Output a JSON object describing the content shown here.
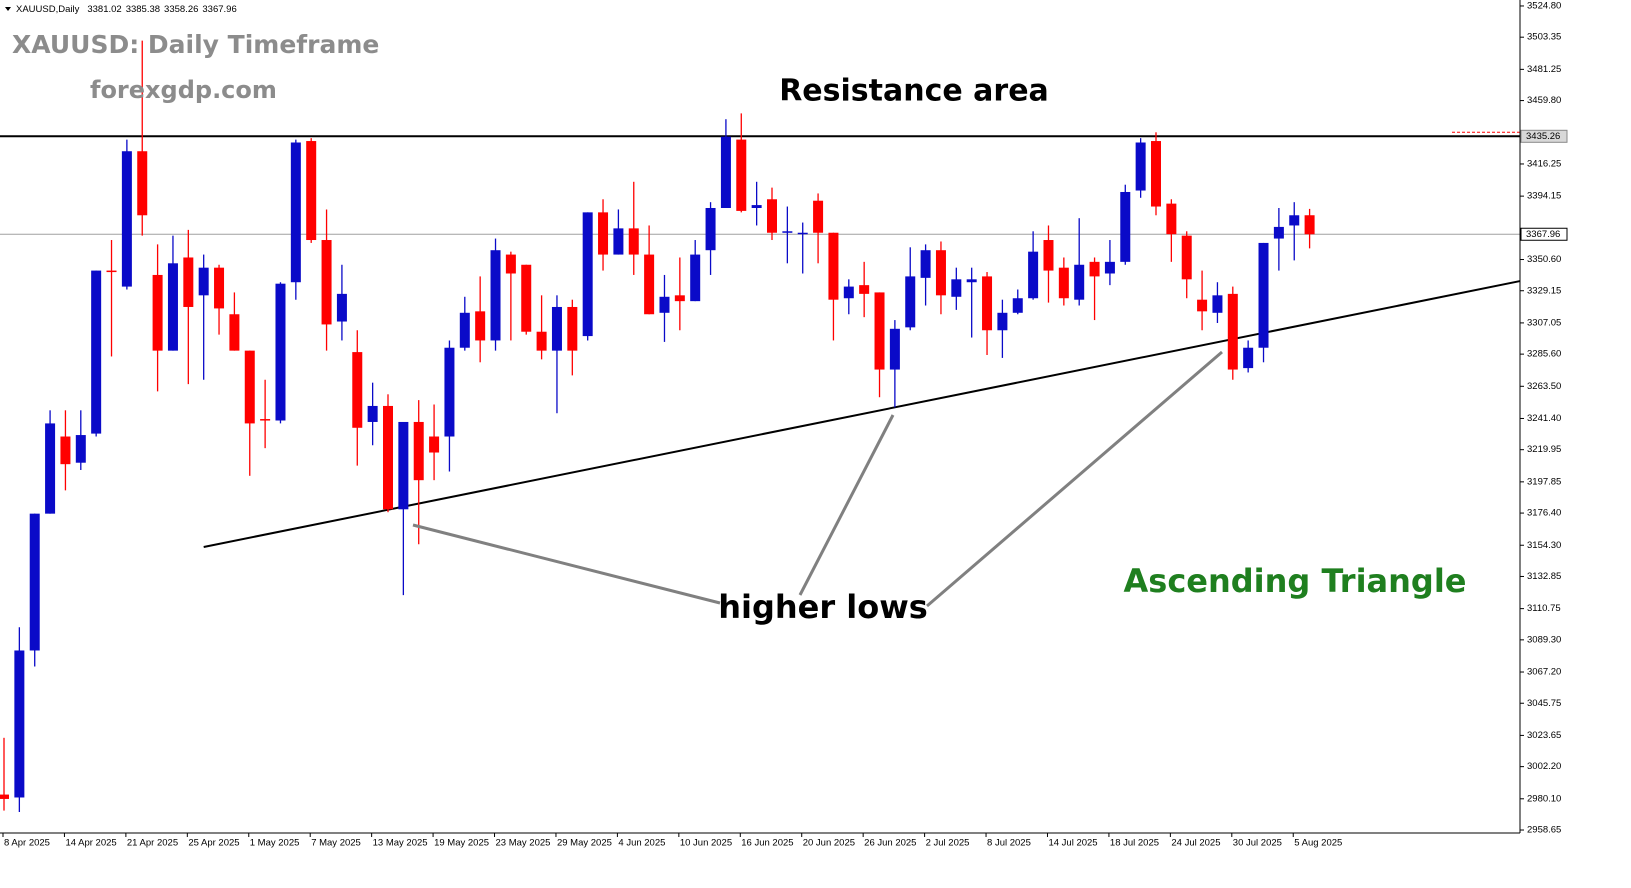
{
  "chart_data": {
    "type": "candlestick",
    "symbol": "XAUUSD,Daily",
    "title": "XAUUSD: Daily Timeframe",
    "subtitle": "forexgdp.com",
    "annotations": {
      "resistance": "Resistance area",
      "lows": "higher lows",
      "pattern": "Ascending Triangle"
    },
    "up_color": "#0a0ac8",
    "down_color": "#ff0000",
    "categories": [
      "8 Apr 2025",
      null,
      null,
      null,
      "14 Apr 2025",
      null,
      null,
      null,
      "21 Apr 2025",
      null,
      null,
      null,
      "25 Apr 2025",
      null,
      null,
      null,
      "1 May 2025",
      null,
      null,
      null,
      "7 May 2025",
      null,
      null,
      null,
      "13 May 2025",
      null,
      null,
      null,
      "19 May 2025",
      null,
      null,
      null,
      "23 May 2025",
      null,
      null,
      null,
      "29 May 2025",
      null,
      null,
      null,
      "4 Jun 2025",
      null,
      null,
      null,
      "10 Jun 2025",
      null,
      null,
      null,
      "16 Jun 2025",
      null,
      null,
      null,
      "20 Jun 2025",
      null,
      null,
      null,
      "26 Jun 2025",
      null,
      null,
      null,
      "2 Jul 2025",
      null,
      null,
      null,
      "8 Jul 2025",
      null,
      null,
      null,
      "14 Jul 2025",
      null,
      null,
      null,
      "18 Jul 2025",
      null,
      null,
      null,
      "24 Jul 2025",
      null,
      null,
      null,
      "30 Jul 2025",
      null,
      null,
      null,
      "5 Aug 2025",
      null
    ],
    "open": [
      2983,
      2981,
      3082,
      3176,
      3229,
      3211,
      3231,
      3343,
      3332,
      3425,
      3340,
      3288,
      3352,
      3326,
      3345,
      3313,
      3288,
      3241,
      3240,
      3335,
      3432,
      3364,
      3308,
      3287,
      3239,
      3250,
      3179,
      3239,
      3229,
      3229,
      3290,
      3315,
      3295,
      3354,
      3347,
      3301,
      3288,
      3318,
      3298,
      3383,
      3354,
      3372,
      3354,
      3314,
      3326,
      3322,
      3357,
      3386,
      3433,
      3386,
      3392,
      3369,
      3368,
      3391,
      3369,
      3324,
      3333,
      3328,
      3275,
      3304,
      3338,
      3357,
      3325,
      3335,
      3339,
      3302,
      3314,
      3324,
      3364,
      3345,
      3323,
      3349,
      3341,
      3349,
      3398,
      3432,
      3389,
      3367,
      3323,
      3314,
      3327,
      3276,
      3290,
      3365,
      3374,
      3381.02
    ],
    "high": [
      3022,
      3098,
      3176,
      3247,
      3247,
      3247,
      3343,
      3364,
      3433,
      3501,
      3361,
      3367,
      3371,
      3354,
      3347,
      3328,
      3288,
      3268,
      3335,
      3433,
      3434,
      3385,
      3347,
      3302,
      3266,
      3258,
      3239,
      3254,
      3251,
      3295,
      3325,
      3339,
      3365,
      3356,
      3347,
      3326,
      3326,
      3323,
      3383,
      3392,
      3385,
      3404,
      3374,
      3340,
      3352,
      3364,
      3390,
      3447,
      3451,
      3404,
      3400,
      3387,
      3376,
      3396,
      3369,
      3337,
      3349,
      3328,
      3309,
      3359,
      3361,
      3363,
      3345,
      3345,
      3342,
      3323,
      3330,
      3370,
      3374,
      3352,
      3379,
      3352,
      3364,
      3402,
      3434,
      3438,
      3392,
      3370,
      3343,
      3335,
      3332,
      3295,
      3362,
      3386,
      3390,
      3385.38
    ],
    "low": [
      2972,
      2971,
      3071,
      3176,
      3192,
      3206,
      3229,
      3284,
      3330,
      3367,
      3260,
      3288,
      3265,
      3268,
      3299,
      3288,
      3202,
      3221,
      3238,
      3323,
      3362,
      3288,
      3295,
      3209,
      3223,
      3177,
      3120,
      3155,
      3199,
      3205,
      3288,
      3280,
      3288,
      3295,
      3299,
      3282,
      3245,
      3271,
      3295,
      3343,
      3354,
      3340,
      3313,
      3294,
      3302,
      3322,
      3340,
      3386,
      3383,
      3374,
      3364,
      3348,
      3341,
      3348,
      3295,
      3313,
      3311,
      3256,
      3249,
      3302,
      3319,
      3313,
      3316,
      3297,
      3285,
      3283,
      3313,
      3323,
      3321,
      3319,
      3319,
      3309,
      3333,
      3347,
      3393,
      3381,
      3349,
      3324,
      3302,
      3307,
      3268,
      3273,
      3280,
      3343,
      3350,
      3358.26
    ],
    "close": [
      2980,
      3082,
      3176,
      3238,
      3210,
      3230,
      3343,
      3342,
      3425,
      3381,
      3288,
      3348,
      3318,
      3345,
      3317,
      3288,
      3238,
      3240,
      3334,
      3431,
      3364,
      3306,
      3327,
      3235,
      3250,
      3179,
      3239,
      3199,
      3218,
      3290,
      3314,
      3295,
      3357,
      3341,
      3301,
      3288,
      3318,
      3288,
      3383,
      3354,
      3372,
      3354,
      3313,
      3325,
      3322,
      3354,
      3386,
      3435,
      3384,
      3388,
      3369,
      3370,
      3369,
      3369,
      3323,
      3332,
      3327,
      3275,
      3303,
      3339,
      3357,
      3326,
      3337,
      3337,
      3302,
      3314,
      3324,
      3356,
      3343,
      3324,
      3347,
      3339,
      3349,
      3397,
      3431,
      3387,
      3368,
      3337,
      3315,
      3326,
      3275,
      3290,
      3362,
      3373,
      3381,
      3367.96
    ],
    "resistance_level": 3435.26,
    "trendline": {
      "x": [
        13,
        98.7
      ],
      "y": [
        3153.1,
        3335.8
      ]
    },
    "ylim": [
      2956.6,
      3528.9
    ],
    "yticks": [
      {
        "value": 3524.8,
        "label": "3524.80"
      },
      3503.35,
      3481.25,
      {
        "value": 3459.8,
        "label": "3459.80"
      },
      3416.25,
      3394.15,
      {
        "value": 3350.6,
        "label": "3350.60"
      },
      3329.15,
      3307.05,
      {
        "value": 3285.6,
        "label": "3285.60"
      },
      {
        "value": 3263.5,
        "label": "3263.50"
      },
      {
        "value": 3241.4,
        "label": "3241.40"
      },
      3219.95,
      3197.85,
      {
        "value": 3176.4,
        "label": "3176.40"
      },
      {
        "value": 3154.3,
        "label": "3154.30"
      },
      3132.85,
      3110.75,
      {
        "value": 3089.3,
        "label": "3089.30"
      },
      {
        "value": 3067.2,
        "label": "3067.20"
      },
      3045.75,
      3023.65,
      {
        "value": 3002.2,
        "label": "3002.20"
      },
      {
        "value": 2980.1,
        "label": "2980.10"
      },
      2958.65
    ]
  }
}
